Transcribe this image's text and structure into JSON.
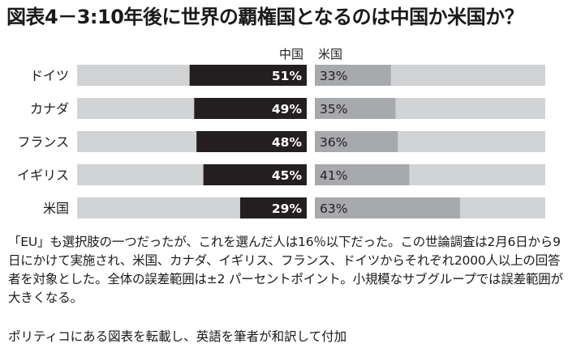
{
  "title": "図表4－3:10年後に世界の覇権国となるのは中国か米国か？",
  "note": "「EU」も選択肢の一つだったが、これを選んだ人は16％以下だった。この世論調査は2月6日から9日にかけて実施され、米国、カナダ、イギリス、フランス、ドイツからそれぞれ2000人以上の回答者を対象とした。全体の誤差範囲は±2 パーセントポイント。小規模なサブグループでは誤差範囲が大きくなる。",
  "credit": "ポリティコにある図表を転載し、英語を筆者が和訳して付加",
  "colors": {
    "china": "#231f20",
    "us": "#a7a9ac",
    "track": "#d1d3d4",
    "china_label": "#ffffff",
    "us_label": "#231f20"
  },
  "chart_data": {
    "type": "bar",
    "categories": [
      "ドイツ",
      "カナダ",
      "フランス",
      "イギリス",
      "米国"
    ],
    "series": [
      {
        "name": "中国",
        "values": [
          51,
          49,
          48,
          45,
          29
        ],
        "labels": [
          "51%",
          "49%",
          "48%",
          "45%",
          "29%"
        ]
      },
      {
        "name": "米国",
        "values": [
          33,
          35,
          36,
          41,
          63
        ],
        "labels": [
          "33%",
          "35%",
          "36%",
          "41%",
          "63%"
        ]
      }
    ],
    "xlim": [
      0,
      100
    ],
    "grid": false,
    "legend": "top"
  }
}
